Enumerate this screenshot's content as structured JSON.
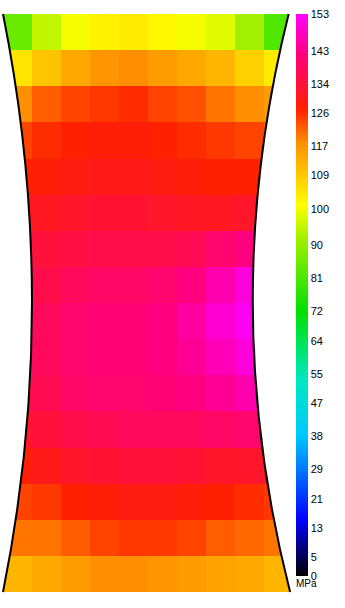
{
  "chart_data": {
    "type": "heatmap",
    "tick_labels": false,
    "cells": [
      [
        85,
        95,
        100,
        103,
        104,
        102,
        100,
        98,
        92,
        82
      ],
      [
        105,
        110,
        114,
        117,
        118,
        116,
        114,
        112,
        108,
        104
      ],
      [
        118,
        122,
        124,
        125,
        126,
        124,
        123,
        120,
        118,
        116
      ],
      [
        124,
        126,
        127,
        128,
        128,
        127,
        126,
        125,
        124,
        122
      ],
      [
        127,
        128,
        129,
        130,
        130,
        129,
        128,
        127,
        127,
        126
      ],
      [
        130,
        131,
        132,
        133,
        133,
        132,
        131,
        131,
        132,
        131
      ],
      [
        132,
        134,
        135,
        136,
        136,
        136,
        137,
        140,
        142,
        138
      ],
      [
        134,
        136,
        138,
        139,
        139,
        140,
        142,
        146,
        150,
        146
      ],
      [
        136,
        138,
        140,
        141,
        141,
        142,
        145,
        149,
        152,
        148
      ],
      [
        136,
        138,
        140,
        141,
        141,
        142,
        144,
        147,
        150,
        146
      ],
      [
        134,
        137,
        139,
        140,
        140,
        141,
        142,
        144,
        146,
        142
      ],
      [
        132,
        134,
        136,
        137,
        138,
        138,
        138,
        139,
        140,
        136
      ],
      [
        128,
        130,
        132,
        133,
        134,
        134,
        133,
        132,
        132,
        130
      ],
      [
        124,
        125,
        127,
        128,
        129,
        129,
        128,
        127,
        126,
        125
      ],
      [
        120,
        120,
        122,
        124,
        125,
        125,
        124,
        122,
        121,
        120
      ],
      [
        112,
        114,
        116,
        118,
        118,
        117,
        116,
        115,
        114,
        112
      ]
    ],
    "colorbar": {
      "title": "MPa",
      "range": [
        0,
        153
      ],
      "ticks": [
        0,
        5,
        13,
        21,
        29,
        38,
        47,
        55,
        64,
        72,
        81,
        90,
        100,
        109,
        117,
        126,
        134,
        143,
        153
      ]
    }
  }
}
